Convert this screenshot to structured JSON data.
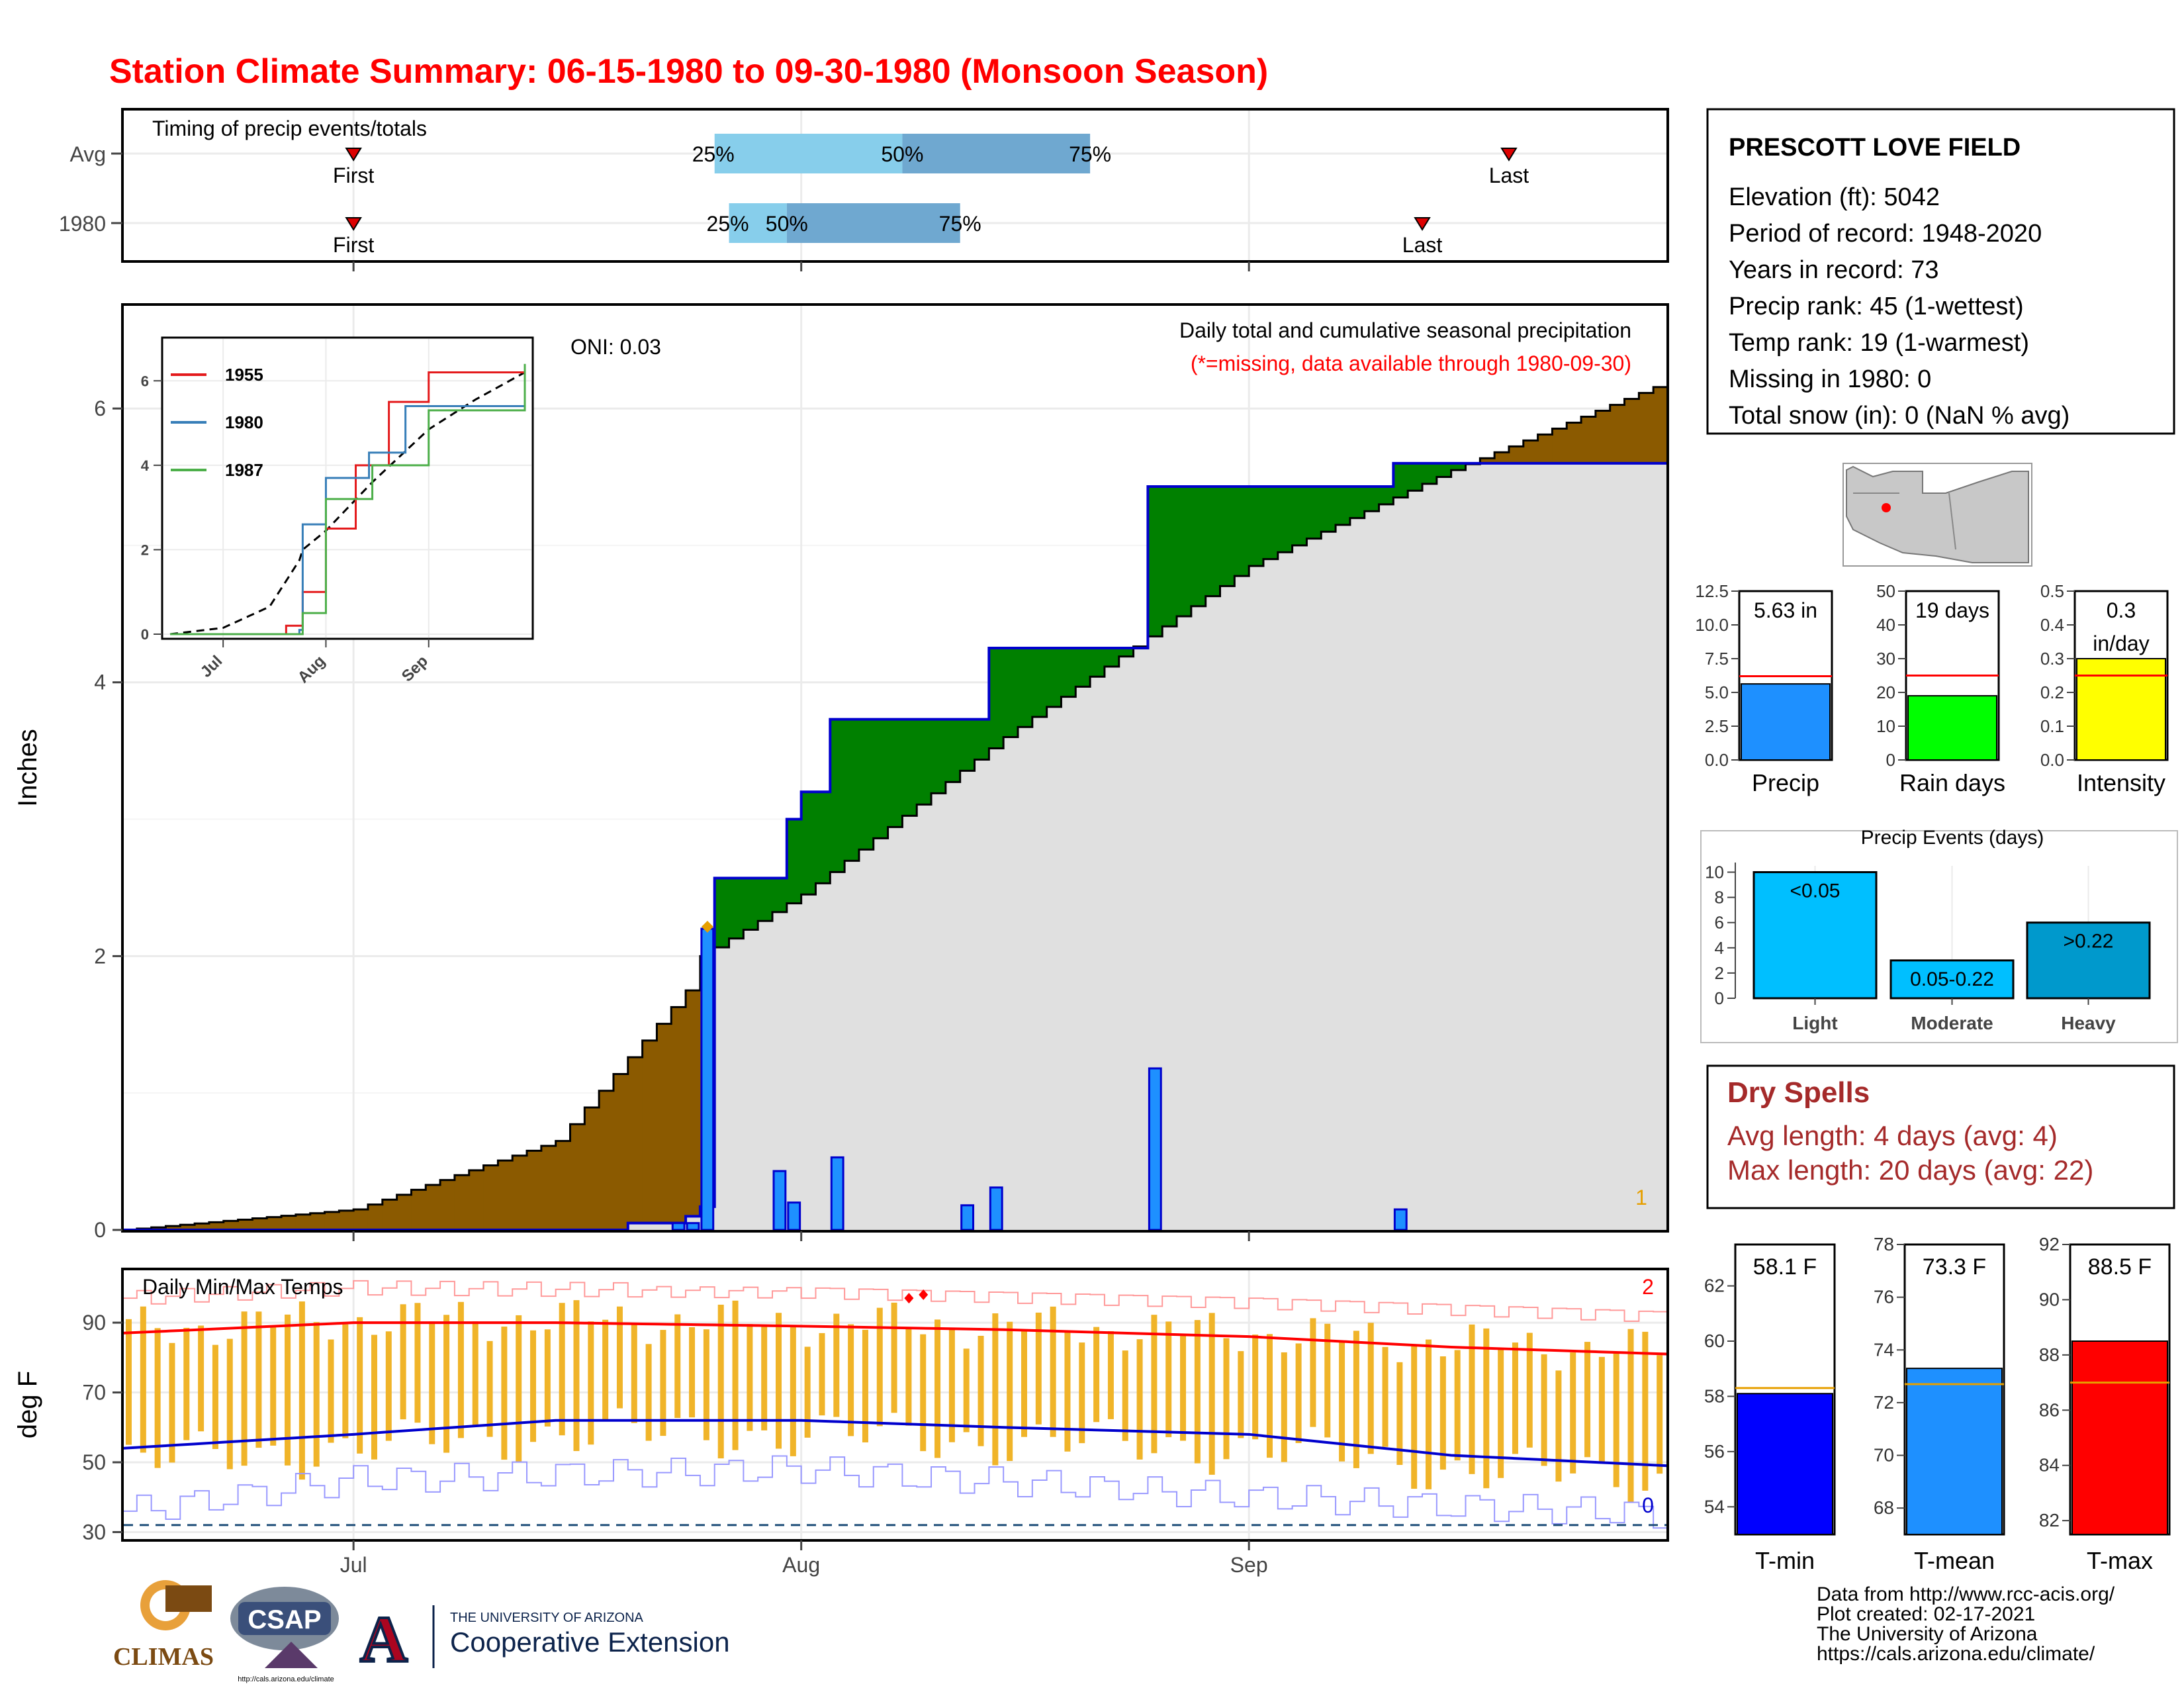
{
  "title": "Station Climate Summary: 06-15-1980 to 09-30-1980 (Monsoon Season)",
  "colors": {
    "title": "#ff0000",
    "brown": "#8b5a00",
    "green": "#008000",
    "grey_fill": "#e0e0e0",
    "blue_line": "#0000cd",
    "blue_bar": "#1e90ff",
    "orange_bar": "#f0b429",
    "red": "#ff0000",
    "light_blue": "#87ceeb",
    "mid_blue": "#6fa8d0",
    "yellow": "#ffff00",
    "bright_green": "#00ff00",
    "sky": "#00bfff",
    "deep_sky": "#0099cc",
    "dry_red": "#a52a2a"
  },
  "timing": {
    "title": "Timing of precip events/totals",
    "rows": [
      {
        "label": "Avg",
        "first": "First",
        "last": "Last",
        "p25": "25%",
        "p50": "50%",
        "p75": "75%",
        "first_date": "2025-07-01",
        "last_date": "2025-09-19",
        "d25": "2025-07-26",
        "d50": "2025-08-08",
        "d75": "2025-08-21"
      },
      {
        "label": "1980",
        "first": "First",
        "last": "Last",
        "p25": "25%",
        "p50": "50%",
        "p75": "75%",
        "first_date": "2025-07-01",
        "last_date": "2025-09-13",
        "d25": "2025-07-27",
        "d50": "2025-07-31",
        "d75": "2025-08-12"
      }
    ]
  },
  "station": {
    "name": "PRESCOTT LOVE FIELD",
    "lines": [
      "Elevation (ft): 5042",
      "Period of record: 1948-2020",
      "Years in record: 73",
      "Precip rank: 45 (1-wettest)",
      "Temp rank: 19 (1-warmest)",
      "Missing in 1980: 0",
      "Total snow (in): 0 (NaN % avg)"
    ]
  },
  "main_chart": {
    "ylabel": "Inches",
    "yticks": [
      "0",
      "2",
      "4",
      "6"
    ],
    "xticks": [
      "Jul",
      "Aug",
      "Sep"
    ],
    "title": "Daily total and cumulative seasonal precipitation",
    "subtitle": "(*=missing, data available through 1980-09-30)",
    "oni": "ONI: 0.03",
    "count_label": "1"
  },
  "inset": {
    "yticks": [
      "0",
      "2",
      "4",
      "6"
    ],
    "xticks": [
      "Jul",
      "Aug",
      "Sep"
    ],
    "legend": [
      {
        "label": "1955",
        "color": "#e41a1c"
      },
      {
        "label": "1980",
        "color": "#377eb8"
      },
      {
        "label": "1987",
        "color": "#4daf4a"
      }
    ]
  },
  "temp_chart": {
    "ylabel": "deg F",
    "title": "Daily Min/Max Temps",
    "yticks": [
      "30",
      "50",
      "70",
      "90"
    ],
    "xticks": [
      "Jul",
      "Aug",
      "Sep"
    ],
    "count_top": "2",
    "count_bottom": "0"
  },
  "bar_panels": [
    {
      "label": "Precip",
      "value_text": "5.63 in",
      "value": 5.63,
      "avg": 6.2,
      "max": 12.5,
      "ticks": [
        "0.0",
        "2.5",
        "5.0",
        "7.5",
        "10.0",
        "12.5"
      ],
      "color": "#1e90ff"
    },
    {
      "label": "Rain days",
      "value_text": "19 days",
      "value": 19,
      "avg": 25,
      "max": 50,
      "ticks": [
        "0",
        "10",
        "20",
        "30",
        "40",
        "50"
      ],
      "color": "#00ff00"
    },
    {
      "label": "Intensity",
      "value_text": "0.3 in/day",
      "value": 0.3,
      "avg": 0.25,
      "max": 0.5,
      "ticks": [
        "0.0",
        "0.1",
        "0.2",
        "0.3",
        "0.4",
        "0.5"
      ],
      "color": "#ffff00"
    }
  ],
  "events": {
    "title": "Precip Events (days)",
    "yticks": [
      "0",
      "2",
      "4",
      "6",
      "8",
      "10"
    ],
    "bars": [
      {
        "label": "Light",
        "inner": "<0.05",
        "value": 10,
        "color": "#00bfff"
      },
      {
        "label": "Moderate",
        "inner": "0.05-0.22",
        "value": 3,
        "color": "#00bfff"
      },
      {
        "label": "Heavy",
        "inner": ">0.22",
        "value": 6,
        "color": "#0099cc"
      }
    ]
  },
  "dry_spells": {
    "title": "Dry Spells",
    "avg": "Avg length: 4 days (avg: 4)",
    "max": "Max length: 20 days (avg: 22)"
  },
  "temp_panels": [
    {
      "label": "T-min",
      "value_text": "58.1 F",
      "value": 58.1,
      "avg": 58.3,
      "min": 53,
      "max": 63.5,
      "ticks": [
        "54",
        "56",
        "58",
        "60",
        "62"
      ],
      "color": "#0000ff"
    },
    {
      "label": "T-mean",
      "value_text": "73.3 F",
      "value": 73.3,
      "avg": 72.7,
      "min": 67,
      "max": 78,
      "ticks": [
        "68",
        "70",
        "72",
        "74",
        "76",
        "78"
      ],
      "color": "#1e90ff"
    },
    {
      "label": "T-max",
      "value_text": "88.5 F",
      "value": 88.5,
      "avg": 87,
      "min": 81.5,
      "max": 92,
      "ticks": [
        "82",
        "84",
        "86",
        "88",
        "90",
        "92"
      ],
      "color": "#ff0000"
    }
  ],
  "footer": {
    "lines": [
      "Data from http://www.rcc-acis.org/",
      "Plot created: 02-17-2021",
      "The University of Arizona",
      "https://cals.arizona.edu/climate/"
    ]
  },
  "logos": {
    "climas": "CLIMAS",
    "csap": "CSAP",
    "csap_url": "http://cals.arizona.edu/climate",
    "ua_small": "THE UNIVERSITY OF ARIZONA",
    "ua_big": "Cooperative Extension"
  },
  "chart_data": [
    {
      "type": "area",
      "title": "Daily total and cumulative seasonal precipitation",
      "ylabel": "Inches",
      "ylim": [
        0,
        6.7
      ],
      "xlim": [
        "1980-06-15",
        "1980-09-30"
      ],
      "series": [
        {
          "name": "1980",
          "x": [
            "1980-06-15",
            "1980-07-20",
            "1980-07-24",
            "1980-07-25",
            "1980-07-26",
            "1980-07-30",
            "1980-07-31",
            "1980-08-01",
            "1980-08-03",
            "1980-08-12",
            "1980-08-14",
            "1980-08-25",
            "1980-09-11",
            "1980-09-30"
          ],
          "y": [
            0,
            0.05,
            0.1,
            0.17,
            2.57,
            2.57,
            3.0,
            3.2,
            3.73,
            3.73,
            4.25,
            5.43,
            5.6,
            5.63
          ]
        },
        {
          "name": "daily totals",
          "x": [
            "1980-07-23",
            "1980-07-24",
            "1980-07-25",
            "1980-07-30",
            "1980-07-31",
            "1980-08-03",
            "1980-08-12",
            "1980-08-14",
            "1980-08-25",
            "1980-09-11"
          ],
          "y": [
            0.05,
            0.05,
            2.2,
            0.43,
            0.2,
            0.53,
            0.18,
            0.31,
            1.18,
            0.15
          ]
        },
        {
          "name": "average cumulative",
          "x": [
            "1980-06-15",
            "1980-07-01",
            "1980-07-15",
            "1980-07-24",
            "1980-07-25",
            "1980-08-01",
            "1980-08-15",
            "1980-09-01",
            "1980-09-15",
            "1980-09-30"
          ],
          "y": [
            0,
            0.15,
            0.65,
            1.75,
            2.0,
            2.45,
            3.6,
            4.85,
            5.55,
            6.2
          ]
        }
      ]
    },
    {
      "type": "line",
      "title": "Daily Min/Max Temps",
      "ylabel": "deg F",
      "ylim": [
        28,
        105
      ],
      "xlim": [
        "1980-06-15",
        "1980-09-30"
      ],
      "series": [
        {
          "name": "avg max",
          "x": [
            "1980-06-15",
            "1980-07-01",
            "1980-07-15",
            "1980-08-01",
            "1980-08-15",
            "1980-09-01",
            "1980-09-15",
            "1980-09-30"
          ],
          "y": [
            87,
            90,
            90,
            89,
            88,
            86,
            83,
            81
          ]
        },
        {
          "name": "avg min",
          "x": [
            "1980-06-15",
            "1980-07-01",
            "1980-07-15",
            "1980-08-01",
            "1980-08-15",
            "1980-09-01",
            "1980-09-15",
            "1980-09-30"
          ],
          "y": [
            54,
            58,
            62,
            62,
            60,
            58,
            52,
            49
          ]
        },
        {
          "name": "record max",
          "x": [
            "1980-06-15",
            "1980-07-01",
            "1980-08-01",
            "1980-09-01",
            "1980-09-30"
          ],
          "y": [
            97,
            100,
            99,
            96,
            92
          ]
        },
        {
          "name": "record min",
          "x": [
            "1980-06-15",
            "1980-07-01",
            "1980-08-01",
            "1980-09-01",
            "1980-09-30"
          ],
          "y": [
            36,
            45,
            48,
            40,
            35
          ]
        }
      ]
    },
    {
      "type": "line",
      "xticks": [
        "Jul",
        "Aug",
        "Sep"
      ],
      "yticks": [
        "0",
        "2",
        "4",
        "6"
      ],
      "series": [
        {
          "name": "1955",
          "x": [
            "1955-06-15",
            "1955-07-20",
            "1955-07-25",
            "1955-08-01",
            "1955-08-10",
            "1955-08-20",
            "1955-09-01",
            "1955-09-30"
          ],
          "y": [
            0,
            0.2,
            1,
            2.5,
            4,
            5.5,
            6.2,
            6.2
          ]
        },
        {
          "name": "1980",
          "x": [
            "1980-06-15",
            "1980-07-24",
            "1980-07-25",
            "1980-08-01",
            "1980-08-14",
            "1980-08-25",
            "1980-09-30"
          ],
          "y": [
            0,
            0.1,
            2.6,
            3.7,
            4.3,
            5.4,
            5.6
          ]
        },
        {
          "name": "1987",
          "x": [
            "1987-06-15",
            "1987-07-25",
            "1987-08-01",
            "1987-08-15",
            "1987-09-01",
            "1987-09-30"
          ],
          "y": [
            0,
            0.5,
            3.2,
            4,
            5.3,
            6.4
          ]
        }
      ]
    },
    {
      "type": "bar",
      "categories": [
        "Precip",
        "Rain days",
        "Intensity"
      ],
      "values": [
        5.63,
        19,
        0.3
      ]
    },
    {
      "type": "bar",
      "title": "Precip Events (days)",
      "categories": [
        "Light",
        "Moderate",
        "Heavy"
      ],
      "values": [
        10,
        3,
        6
      ]
    },
    {
      "type": "bar",
      "categories": [
        "T-min",
        "T-mean",
        "T-max"
      ],
      "values": [
        58.1,
        73.3,
        88.5
      ]
    }
  ]
}
